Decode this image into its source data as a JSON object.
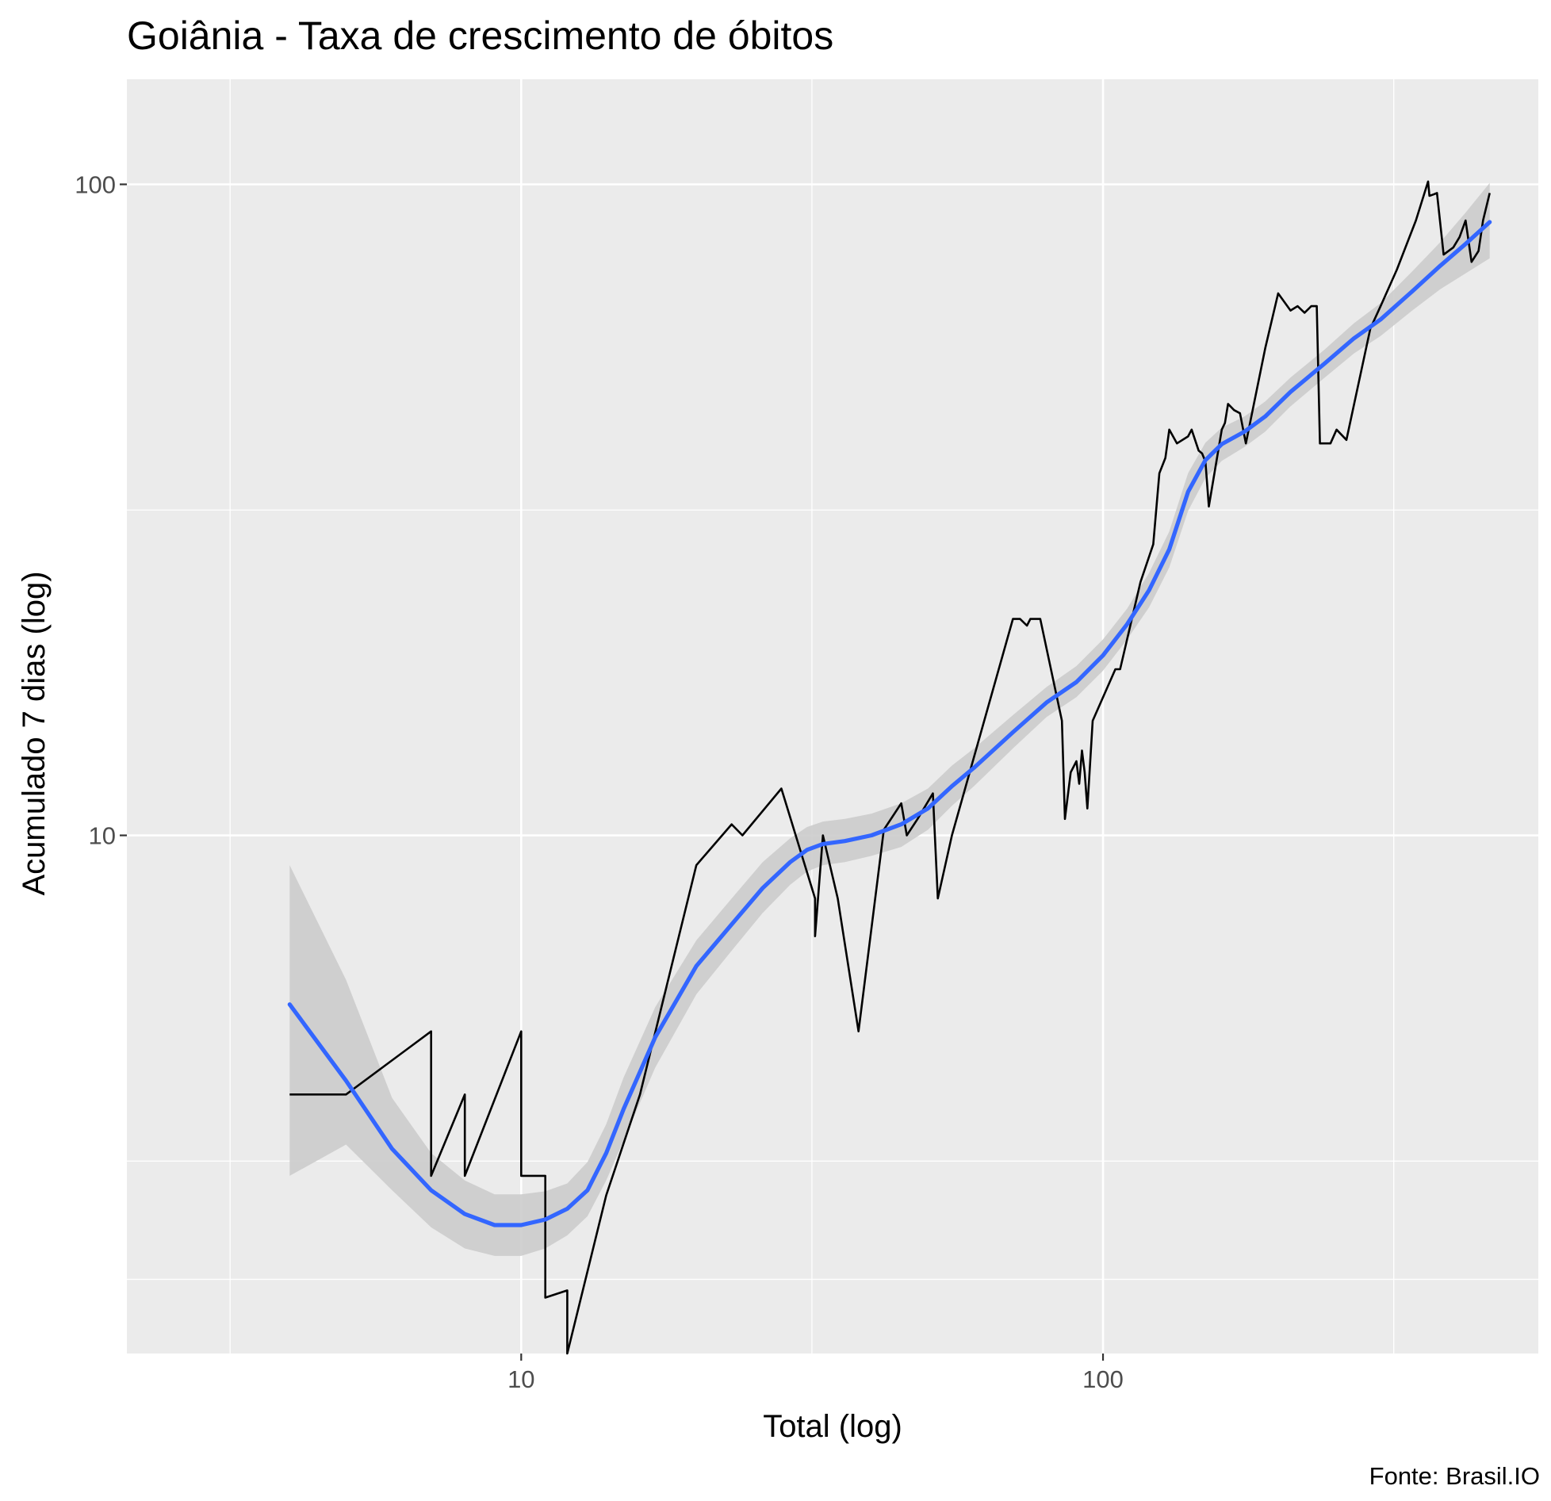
{
  "chart_data": {
    "type": "line",
    "title": "Goiânia - Taxa de crescimento de óbitos",
    "xlabel": "Total (log)",
    "ylabel": "Acumulado 7 dias (log)",
    "caption": "Fonte: Brasil.IO",
    "x_scale": "log10",
    "y_scale": "log10",
    "xlim": [
      2.1,
      560
    ],
    "ylim": [
      1.6,
      145
    ],
    "x_ticks": [
      {
        "value": 10,
        "label": "10"
      },
      {
        "value": 100,
        "label": "100"
      }
    ],
    "y_ticks": [
      {
        "value": 10,
        "label": "10"
      },
      {
        "value": 100,
        "label": "100"
      }
    ],
    "x_minor_gridlines": [
      3.16,
      31.6,
      316
    ],
    "y_minor_gridlines": [
      2.08,
      3.16,
      31.6
    ],
    "grid": true,
    "panel_background": "#ebebeb",
    "gridline_color": "#ffffff",
    "series": [
      {
        "style": "observed",
        "color": "#000000",
        "points": [
          [
            4,
            4
          ],
          [
            5,
            4
          ],
          [
            7,
            5
          ],
          [
            7,
            3
          ],
          [
            8,
            4
          ],
          [
            8,
            3
          ],
          [
            10,
            5
          ],
          [
            10,
            3
          ],
          [
            11,
            3
          ],
          [
            11,
            1.95
          ],
          [
            12,
            2
          ],
          [
            12,
            1.6
          ],
          [
            14,
            2.8
          ],
          [
            16,
            4
          ],
          [
            20,
            9
          ],
          [
            23,
            10.4
          ],
          [
            24,
            10
          ],
          [
            28,
            11.8
          ],
          [
            32,
            8
          ],
          [
            32,
            7
          ],
          [
            33,
            10
          ],
          [
            35,
            8
          ],
          [
            38,
            5
          ],
          [
            42,
            10.2
          ],
          [
            45,
            11.2
          ],
          [
            46,
            10
          ],
          [
            48,
            10.6
          ],
          [
            51,
            11.6
          ],
          [
            52,
            8
          ],
          [
            55,
            10
          ],
          [
            70,
            21.5
          ],
          [
            72,
            21.5
          ],
          [
            74,
            21
          ],
          [
            75,
            21.5
          ],
          [
            78,
            21.5
          ],
          [
            85,
            15
          ],
          [
            86,
            10.6
          ],
          [
            88,
            12.5
          ],
          [
            90,
            13
          ],
          [
            91,
            12
          ],
          [
            92,
            13.5
          ],
          [
            93,
            12.5
          ],
          [
            94,
            11
          ],
          [
            96,
            15
          ],
          [
            105,
            18
          ],
          [
            107,
            18
          ],
          [
            116,
            24.5
          ],
          [
            122,
            28
          ],
          [
            125,
            36
          ],
          [
            128,
            38
          ],
          [
            130,
            42
          ],
          [
            134,
            40
          ],
          [
            140,
            41
          ],
          [
            142,
            42
          ],
          [
            146,
            39
          ],
          [
            148,
            38.6
          ],
          [
            150,
            37.5
          ],
          [
            152,
            32
          ],
          [
            160,
            42
          ],
          [
            162,
            43
          ],
          [
            164,
            46
          ],
          [
            168,
            45
          ],
          [
            172,
            44.5
          ],
          [
            176,
            40
          ],
          [
            190,
            56
          ],
          [
            200,
            68
          ],
          [
            210,
            64
          ],
          [
            216,
            65
          ],
          [
            222,
            63.5
          ],
          [
            228,
            65
          ],
          [
            233,
            65
          ],
          [
            236,
            40
          ],
          [
            246,
            40
          ],
          [
            252,
            42
          ],
          [
            262,
            40.5
          ],
          [
            288,
            60
          ],
          [
            300,
            65
          ],
          [
            320,
            74
          ],
          [
            345,
            88
          ],
          [
            362,
            101
          ],
          [
            364,
            96
          ],
          [
            370,
            96.5
          ],
          [
            375,
            97
          ],
          [
            385,
            78
          ],
          [
            400,
            80
          ],
          [
            410,
            83
          ],
          [
            420,
            88
          ],
          [
            430,
            76
          ],
          [
            442,
            79
          ],
          [
            450,
            88
          ],
          [
            462,
            97
          ]
        ]
      },
      {
        "style": "smooth",
        "color": "#3366ff",
        "points": [
          [
            4,
            5.5
          ],
          [
            5,
            4.2
          ],
          [
            6,
            3.3
          ],
          [
            7,
            2.85
          ],
          [
            8,
            2.62
          ],
          [
            9,
            2.52
          ],
          [
            10,
            2.52
          ],
          [
            11,
            2.57
          ],
          [
            12,
            2.67
          ],
          [
            13,
            2.85
          ],
          [
            14,
            3.25
          ],
          [
            15,
            3.8
          ],
          [
            17,
            4.9
          ],
          [
            20,
            6.3
          ],
          [
            23,
            7.3
          ],
          [
            26,
            8.3
          ],
          [
            29,
            9.1
          ],
          [
            31,
            9.5
          ],
          [
            33,
            9.7
          ],
          [
            36,
            9.8
          ],
          [
            40,
            10.0
          ],
          [
            45,
            10.4
          ],
          [
            50,
            11.0
          ],
          [
            55,
            11.9
          ],
          [
            60,
            12.7
          ],
          [
            70,
            14.4
          ],
          [
            80,
            16.0
          ],
          [
            90,
            17.2
          ],
          [
            100,
            18.9
          ],
          [
            110,
            21.1
          ],
          [
            120,
            23.8
          ],
          [
            130,
            27.5
          ],
          [
            140,
            33.7
          ],
          [
            150,
            37.7
          ],
          [
            160,
            39.9
          ],
          [
            175,
            41.7
          ],
          [
            190,
            44.0
          ],
          [
            210,
            48.0
          ],
          [
            240,
            53.0
          ],
          [
            270,
            58.0
          ],
          [
            300,
            62.0
          ],
          [
            340,
            68.5
          ],
          [
            380,
            75.0
          ],
          [
            420,
            81.0
          ],
          [
            462,
            87.5
          ]
        ]
      }
    ],
    "confidence_band": {
      "color": "#cccccc",
      "points": [
        [
          4,
          3.0,
          9.0
        ],
        [
          5,
          3.35,
          6.0
        ],
        [
          6,
          2.85,
          3.95
        ],
        [
          7,
          2.5,
          3.25
        ],
        [
          8,
          2.32,
          2.95
        ],
        [
          9,
          2.26,
          2.81
        ],
        [
          10,
          2.26,
          2.81
        ],
        [
          11,
          2.32,
          2.84
        ],
        [
          12,
          2.43,
          2.92
        ],
        [
          13,
          2.6,
          3.15
        ],
        [
          14,
          2.95,
          3.6
        ],
        [
          15,
          3.4,
          4.25
        ],
        [
          17,
          4.4,
          5.45
        ],
        [
          20,
          5.7,
          6.9
        ],
        [
          23,
          6.65,
          8.0
        ],
        [
          26,
          7.6,
          9.1
        ],
        [
          29,
          8.4,
          9.9
        ],
        [
          31,
          8.8,
          10.3
        ],
        [
          33,
          9.0,
          10.5
        ],
        [
          36,
          9.1,
          10.6
        ],
        [
          40,
          9.3,
          10.8
        ],
        [
          45,
          9.6,
          11.2
        ],
        [
          50,
          10.2,
          11.8
        ],
        [
          55,
          11.1,
          12.8
        ],
        [
          60,
          11.9,
          13.6
        ],
        [
          70,
          13.6,
          15.3
        ],
        [
          80,
          15.2,
          16.9
        ],
        [
          90,
          16.3,
          18.2
        ],
        [
          100,
          17.9,
          20.0
        ],
        [
          110,
          20.0,
          22.3
        ],
        [
          120,
          22.4,
          25.3
        ],
        [
          130,
          25.8,
          29.3
        ],
        [
          140,
          31.5,
          36.0
        ],
        [
          150,
          35.4,
          40.1
        ],
        [
          160,
          37.6,
          42.3
        ],
        [
          175,
          39.5,
          44.0
        ],
        [
          190,
          41.7,
          46.4
        ],
        [
          210,
          45.6,
          50.5
        ],
        [
          240,
          50.4,
          55.7
        ],
        [
          270,
          55.0,
          61.2
        ],
        [
          300,
          58.5,
          65.7
        ],
        [
          340,
          64.0,
          73.5
        ],
        [
          380,
          69.0,
          81.5
        ],
        [
          420,
          73.0,
          90.5
        ],
        [
          462,
          77.0,
          100.5
        ]
      ]
    }
  }
}
